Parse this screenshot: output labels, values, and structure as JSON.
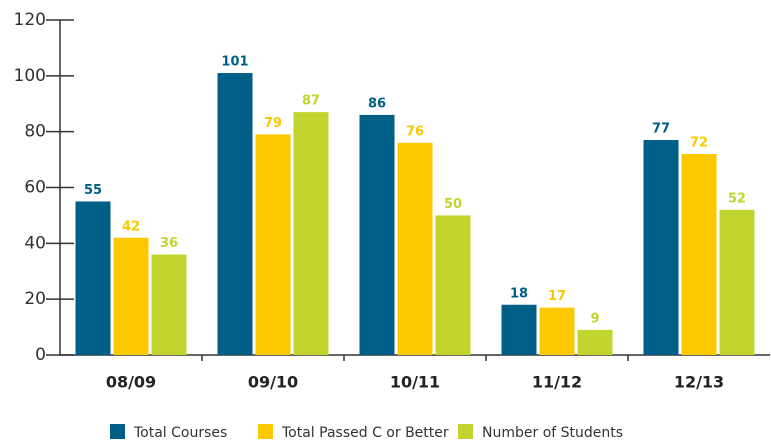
{
  "chart_data": {
    "type": "bar",
    "categories": [
      "08/09",
      "09/10",
      "10/11",
      "11/12",
      "12/13"
    ],
    "series": [
      {
        "name": "Total Courses",
        "color": "#005f87",
        "values": [
          55,
          101,
          86,
          18,
          77
        ]
      },
      {
        "name": "Total Passed C or Better",
        "color": "#fcc800",
        "values": [
          42,
          79,
          76,
          17,
          72
        ]
      },
      {
        "name": "Number of Students",
        "color": "#c2d52f",
        "values": [
          36,
          87,
          50,
          9,
          52
        ]
      }
    ],
    "ylim": [
      0,
      120
    ],
    "yticks": [
      0,
      20,
      40,
      60,
      80,
      100,
      120
    ],
    "grid": false,
    "legend": "bottom"
  }
}
